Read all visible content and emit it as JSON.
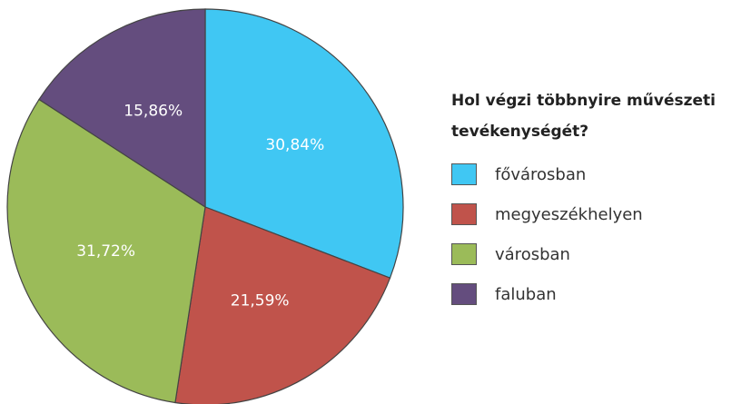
{
  "chart_data": {
    "type": "pie",
    "legend_title": "Hol végzi többnyire művészeti tevékenységét?",
    "categories": [
      "fővárosban",
      "megyeszékhelyen",
      "városban",
      "faluban"
    ],
    "values": [
      30.84,
      21.59,
      31.72,
      15.86
    ],
    "value_labels": [
      "30,84%",
      "21,59%",
      "31,72%",
      "15,86%"
    ],
    "colors": [
      "#40c7f3",
      "#c0534b",
      "#9bbb59",
      "#644d7e"
    ],
    "legend": "right"
  }
}
